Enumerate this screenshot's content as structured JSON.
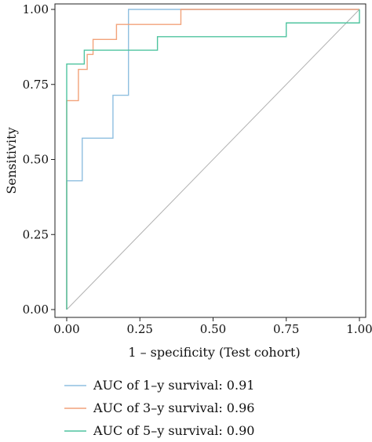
{
  "chart_data": {
    "type": "line",
    "title": "",
    "xlabel": "1 – specificity (Test cohort)",
    "ylabel": "Sensitivity",
    "xlim": [
      0,
      1
    ],
    "ylim": [
      0,
      1
    ],
    "x_ticks": [
      "0.00",
      "0.25",
      "0.50",
      "0.75",
      "1.00"
    ],
    "y_ticks": [
      "0.00",
      "0.25",
      "0.50",
      "0.75",
      "1.00"
    ],
    "grid": false,
    "legend_position": "bottom",
    "reference_line": {
      "from": [
        0,
        0
      ],
      "to": [
        1,
        1
      ],
      "color": "#b0b0b0"
    },
    "series": [
      {
        "name": "AUC of 1–y survival: 0.91",
        "color": "#8fbfe0",
        "x": [
          0,
          0,
          0.053,
          0.053,
          0.158,
          0.158,
          0.211,
          0.211,
          1
        ],
        "y": [
          0,
          0.429,
          0.429,
          0.571,
          0.571,
          0.714,
          0.714,
          1,
          1
        ]
      },
      {
        "name": "AUC of 3–y survival: 0.96",
        "color": "#f2a27a",
        "x": [
          0,
          0,
          0.04,
          0.04,
          0.07,
          0.07,
          0.09,
          0.09,
          0.17,
          0.17,
          0.39,
          0.39,
          1
        ],
        "y": [
          0,
          0.696,
          0.696,
          0.8,
          0.8,
          0.85,
          0.85,
          0.9,
          0.9,
          0.95,
          0.95,
          1,
          1
        ]
      },
      {
        "name": "AUC of 5–y survival: 0.90",
        "color": "#4fc49f",
        "x": [
          0,
          0,
          0.06,
          0.06,
          0.31,
          0.31,
          0.75,
          0.75,
          1,
          1
        ],
        "y": [
          0,
          0.818,
          0.818,
          0.864,
          0.864,
          0.909,
          0.909,
          0.955,
          0.955,
          1
        ]
      }
    ]
  }
}
